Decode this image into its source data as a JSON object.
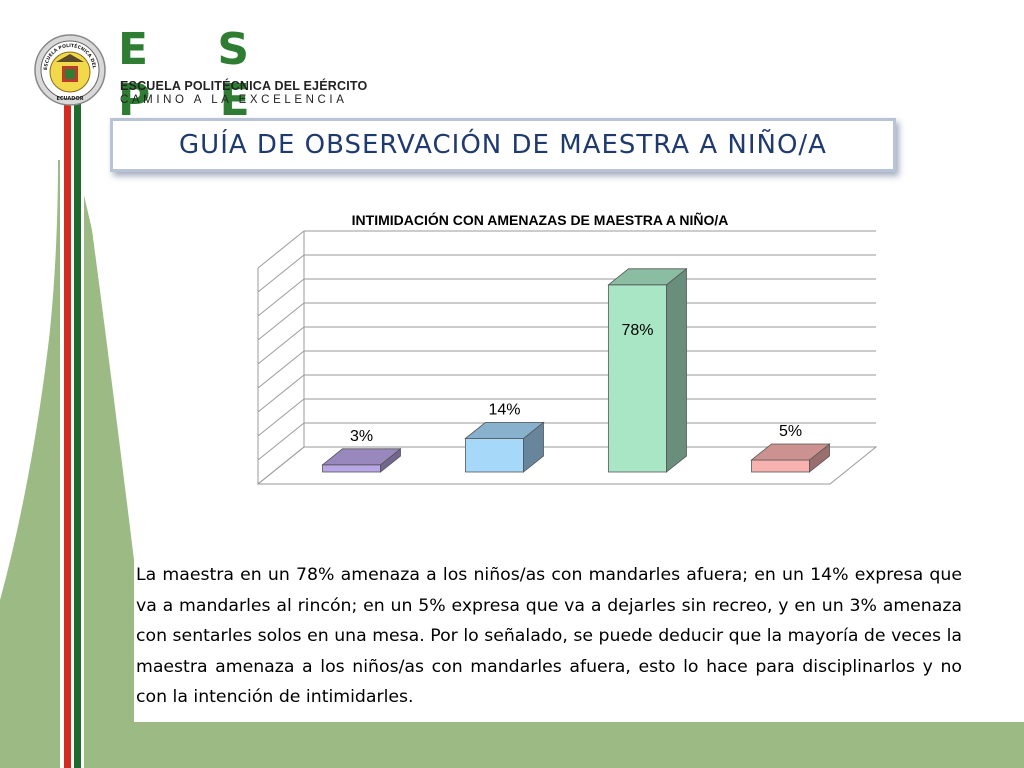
{
  "header": {
    "brand": "E S P E",
    "institution": "ESCUELA POLITÉCNICA DEL EJÉRCITO",
    "motto": "CAMINO A LA EXCELENCIA",
    "seal_top_text": "ESCUELA POLITÉCNICA DEL EJÉRCITO",
    "seal_bottom_text": "ECUADOR"
  },
  "slide": {
    "title": "GUÍA DE OBSERVACIÓN DE MAESTRA A NIÑO/A",
    "paragraph": "La maestra en un 78% amenaza a los niños/as con mandarles afuera; en un 14% expresa que va a mandarles al rincón; en un 5% expresa que va a dejarles sin recreo, y en un 3% amenaza con sentarles solos en una mesa. Por lo señalado, se puede deducir que la mayoría de veces la maestra amenaza a los niños/as con mandarles afuera, esto lo hace para disciplinarlos y no con la intención de intimidarles."
  },
  "chart_data": {
    "type": "bar",
    "title": "INTIMIDACIÓN CON AMENAZAS DE MAESTRA A NIÑO/A",
    "values": [
      3,
      14,
      78,
      5
    ],
    "labels": [
      "3%",
      "14%",
      "78%",
      "5%"
    ],
    "colors": [
      "#b9a6e6",
      "#a6d8fa",
      "#a8e6c6",
      "#f7b2b0"
    ],
    "ylim": [
      0,
      90
    ],
    "grid": true,
    "legend": "none",
    "style": "3d"
  },
  "colors": {
    "brand_green": "#2e7d32",
    "title_navy": "#1f3a6e",
    "band_green": "#9cba84",
    "stripe_red": "#d42a1f",
    "stripe_green": "#1f6b2e"
  }
}
